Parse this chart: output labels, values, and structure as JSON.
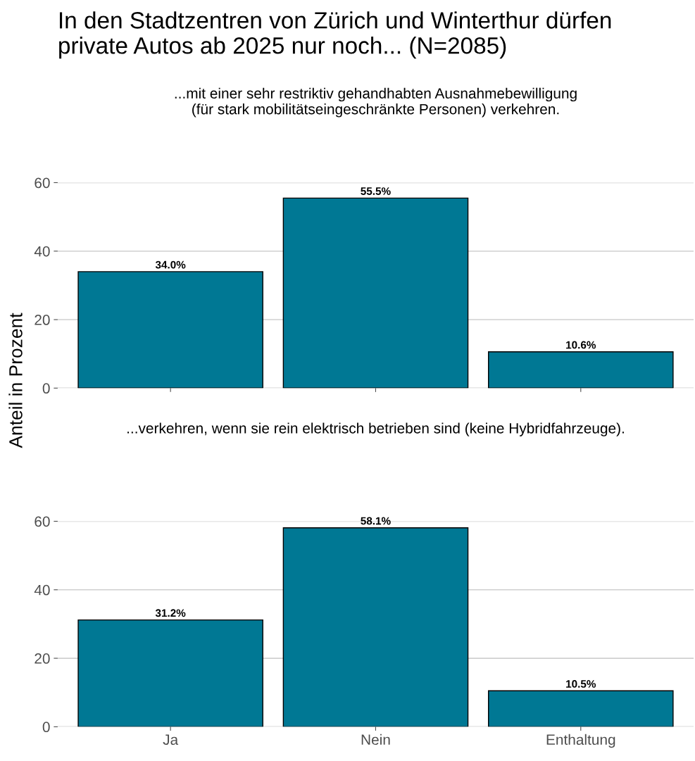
{
  "chart_data": [
    {
      "type": "bar",
      "title": "In den Stadtzentren von Zürich und Winterthur dürfen\nprivate Autos ab 2025 nur noch... (N=2085)",
      "subtitle": "...mit einer sehr restriktiv gehandhabten Ausnahmebewilligung\n(für stark mobilitätseingeschränkte Personen) verkehren.",
      "ylabel": "Anteil in Prozent",
      "categories": [
        null,
        null,
        null
      ],
      "values": [
        34.0,
        55.5,
        10.6
      ],
      "value_labels": [
        "34.0%",
        "55.5%",
        "10.6%"
      ],
      "color": "#007894",
      "ylim": [
        0,
        60
      ],
      "yticks": [
        0,
        20,
        40,
        60
      ],
      "grid": "y",
      "tick_labels": "y"
    },
    {
      "type": "bar",
      "subtitle": "...verkehren, wenn sie rein elektrisch betrieben sind (keine Hybridfahrzeuge).",
      "categories": [
        "Ja",
        "Nein",
        "Enthaltung"
      ],
      "values": [
        31.2,
        58.1,
        10.5
      ],
      "value_labels": [
        "31.2%",
        "58.1%",
        "10.5%"
      ],
      "color": "#007894",
      "ylim": [
        0,
        60
      ],
      "yticks": [
        0,
        20,
        40,
        60
      ],
      "grid": "y"
    }
  ]
}
